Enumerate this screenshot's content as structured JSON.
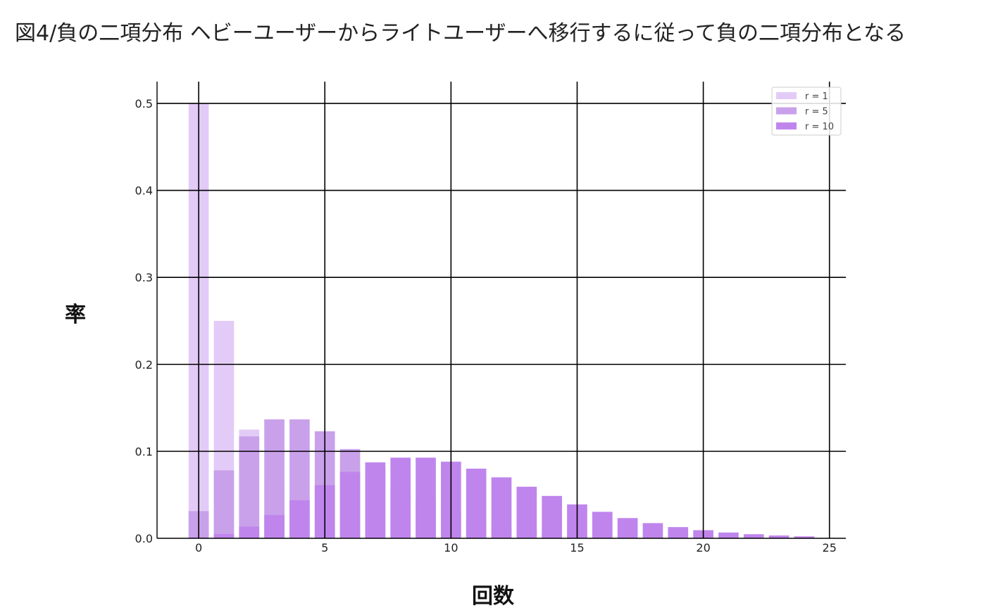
{
  "chart_data": {
    "type": "bar",
    "title": "図4/負の二項分布 ヘビーユーザーからライトユーザーへ移行するに従って負の二項分布となる",
    "xlabel": "回数",
    "ylabel": "率",
    "xlim": [
      -1.65,
      25.65
    ],
    "ylim": [
      0,
      0.525
    ],
    "xticks": [
      0,
      5,
      10,
      15,
      20,
      25
    ],
    "yticks": [
      0.0,
      0.1,
      0.2,
      0.3,
      0.4,
      0.5
    ],
    "grid": true,
    "legend_position": "top-right",
    "x": [
      0,
      1,
      2,
      3,
      4,
      5,
      6,
      7,
      8,
      9,
      10,
      11,
      12,
      13,
      14,
      15,
      16,
      17,
      18,
      19,
      20,
      21,
      22,
      23,
      24
    ],
    "series": [
      {
        "name": "r = 1",
        "color": "#e3cbf7",
        "values": [
          0.5,
          0.25,
          0.125,
          0.0625,
          0.03125,
          0.015625,
          0.0078125,
          0.00390625,
          0.001953,
          0.000977,
          0.000488,
          0.000244,
          0.000122,
          6.1e-05,
          3.1e-05,
          1.5e-05,
          8e-06,
          4e-06,
          2e-06,
          1e-06,
          0.0,
          0.0,
          0.0,
          0.0,
          0.0
        ]
      },
      {
        "name": "r = 5",
        "color": "#c9a1ea",
        "values": [
          0.03125,
          0.078125,
          0.117188,
          0.136719,
          0.136719,
          0.123047,
          0.102539,
          0.080566,
          0.060425,
          0.04364,
          0.030548,
          0.020828,
          0.013885,
          0.009079,
          0.005837,
          0.003697,
          0.002311,
          0.001427,
          0.000872,
          0.000528,
          0.000317,
          0.000188,
          0.000111,
          6.5e-05,
          3.8e-05
        ]
      },
      {
        "name": "r = 10",
        "color": "#bf85ec",
        "values": [
          0.000977,
          0.004883,
          0.013428,
          0.026855,
          0.04364,
          0.0611,
          0.07637,
          0.08728,
          0.092736,
          0.092736,
          0.0881,
          0.08009,
          0.070075,
          0.059295,
          0.048707,
          0.038966,
          0.030442,
          0.023276,
          0.017457,
          0.012863,
          0.009326,
          0.006661,
          0.004692,
          0.003264,
          0.002244
        ]
      }
    ],
    "legend_labels": [
      "r = 1",
      "r = 5",
      "r = 10"
    ],
    "ytick_labels": [
      "0.0",
      "0.1",
      "0.2",
      "0.3",
      "0.4",
      "0.5"
    ],
    "xtick_labels": [
      "0",
      "5",
      "10",
      "15",
      "20",
      "25"
    ]
  }
}
